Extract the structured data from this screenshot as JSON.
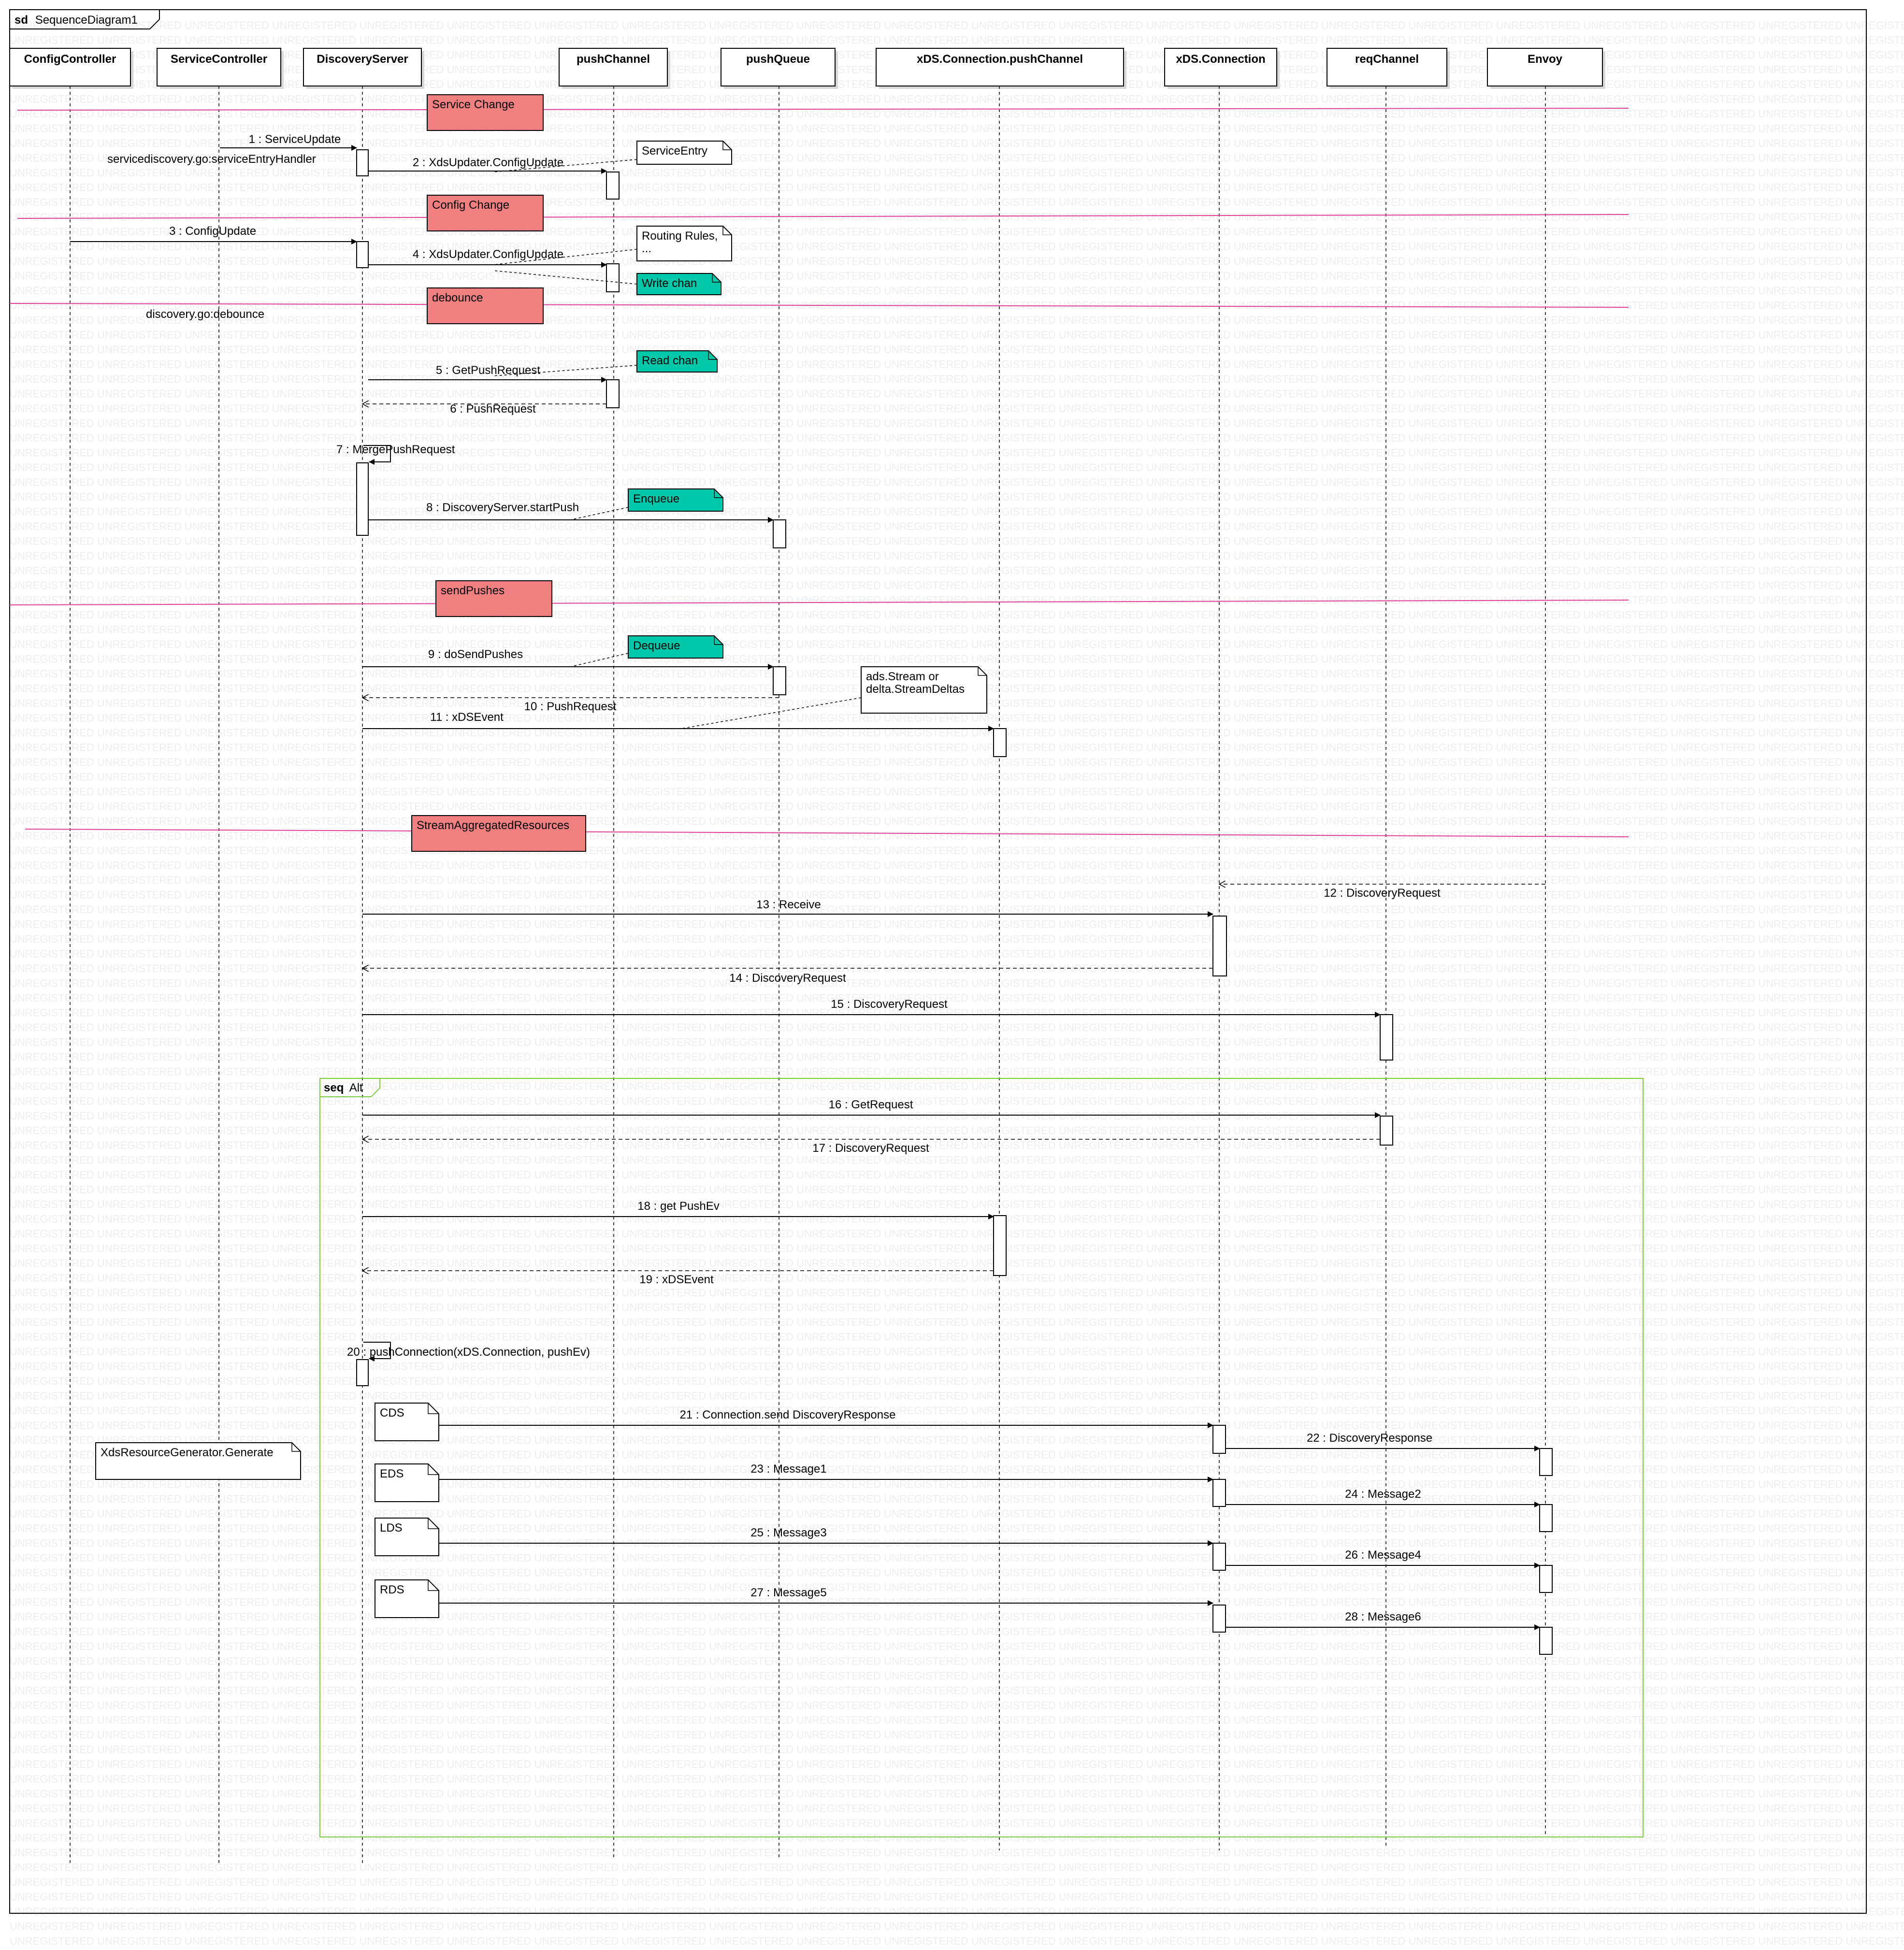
{
  "frame": {
    "keyword": "sd",
    "name": "SequenceDiagram1"
  },
  "watermark": "UNREGISTERED",
  "colors": {
    "divider": "#e0409a",
    "section_fill": "#f08080",
    "note_teal": "#00c8a8",
    "combined_fragment": "#80cc40",
    "line": "#000000",
    "watermark": "#eeeeee"
  },
  "lifelines": [
    "ConfigController",
    "ServiceController",
    "DiscoveryServer",
    "pushChannel",
    "pushQueue",
    "xDS.Connection.pushChannel",
    "xDS.Connection",
    "reqChannel",
    "Envoy"
  ],
  "sections": [
    "Service Change",
    "Config Change",
    "debounce",
    "sendPushes",
    "StreamAggregatedResources"
  ],
  "notes": {
    "service_entry": "ServiceEntry",
    "routing_rules": [
      "Routing Rules,",
      "..."
    ],
    "write_chan": "Write chan",
    "read_chan": "Read chan",
    "enqueue": "Enqueue",
    "dequeue": "Dequeue",
    "ads_stream": [
      "ads.Stream or",
      "delta.StreamDeltas"
    ],
    "cds": "CDS",
    "eds": "EDS",
    "lds": "LDS",
    "rds": "RDS",
    "xds_generator": "XdsResourceGenerator.Generate"
  },
  "annotations": {
    "service_handler": "servicediscovery.go:serviceEntryHandler",
    "debounce_fn": "discovery.go:debounce"
  },
  "fragment": {
    "keyword": "seq",
    "name": "Alt"
  },
  "messages": [
    "1 : ServiceUpdate",
    "2 : XdsUpdater.ConfigUpdate",
    "3 : ConfigUpdate",
    "4 : XdsUpdater.ConfigUpdate",
    "5 : GetPushRequest",
    "6 : PushRequest",
    "7 : MergePushRequest",
    "8 : DiscoveryServer.startPush",
    "9 : doSendPushes",
    "10 : PushRequest",
    "11 : xDSEvent",
    "12 : DiscoveryRequest",
    "13 : Receive",
    "14 : DiscoveryRequest",
    "15 : DiscoveryRequest",
    "16 : GetRequest",
    "17 : DiscoveryRequest",
    "18 : get PushEv",
    "19 : xDSEvent",
    "20 : pushConnection(xDS.Connection, pushEv)",
    "21 : Connection.send DiscoveryResponse",
    "22 : DiscoveryResponse",
    "23 : Message1",
    "24 : Message2",
    "25 : Message3",
    "26 : Message4",
    "27 : Message5",
    "28 : Message6"
  ]
}
